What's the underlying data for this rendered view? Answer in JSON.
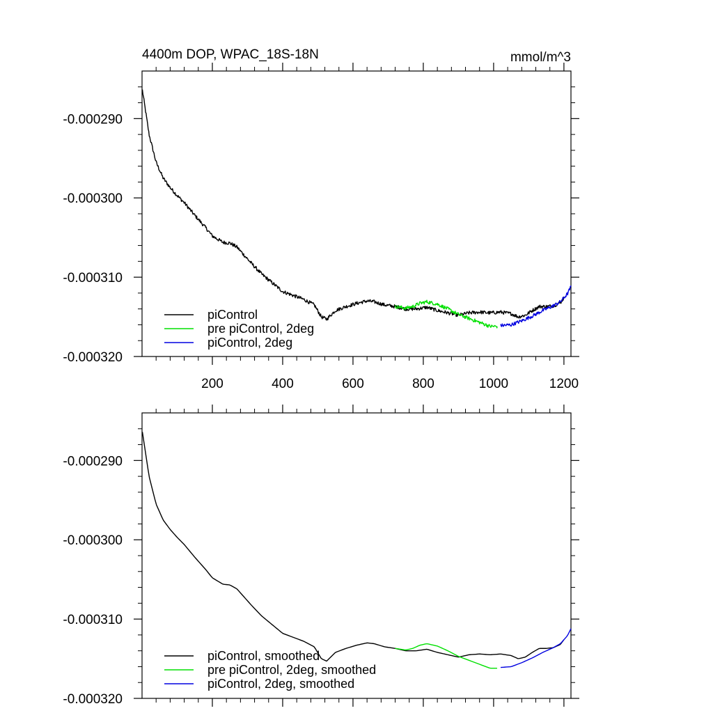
{
  "chart_data": [
    {
      "type": "line",
      "title": "4400m DOP, WPAC_18S-18N",
      "units": "mmol/m^3",
      "xlim": [
        0,
        1220
      ],
      "ylim": [
        -0.00032,
        -0.000284
      ],
      "x_ticks": [
        200,
        400,
        600,
        800,
        1000,
        1200
      ],
      "x_tick_labels": [
        "200",
        "400",
        "600",
        "800",
        "1000",
        "1200"
      ],
      "y_ticks": [
        -0.00029,
        -0.0003,
        -0.00031,
        -0.00032
      ],
      "y_tick_labels": [
        "-0.000290",
        "-0.000300",
        "-0.000310",
        "-0.000320"
      ],
      "series": [
        {
          "name": "piControl",
          "color": "#000000",
          "noisy": true,
          "x": [
            1,
            20,
            40,
            60,
            80,
            100,
            120,
            150,
            180,
            200,
            230,
            250,
            270,
            290,
            310,
            340,
            370,
            400,
            430,
            460,
            490,
            510,
            525,
            550,
            580,
            610,
            640,
            660,
            690,
            720,
            750,
            780,
            810,
            840,
            870,
            900,
            930,
            960,
            990,
            1020,
            1050,
            1070,
            1090,
            1110,
            1130,
            1150,
            1170,
            1190,
            1200
          ],
          "y": [
            -0.0002864,
            -0.000292,
            -0.0002955,
            -0.0002975,
            -0.0002987,
            -0.0002997,
            -0.0003006,
            -0.0003022,
            -0.0003037,
            -0.0003048,
            -0.0003056,
            -0.0003057,
            -0.0003062,
            -0.0003072,
            -0.0003082,
            -0.0003096,
            -0.0003107,
            -0.0003118,
            -0.0003123,
            -0.0003128,
            -0.0003135,
            -0.000315,
            -0.0003153,
            -0.0003142,
            -0.0003137,
            -0.0003133,
            -0.000313,
            -0.0003131,
            -0.0003135,
            -0.0003137,
            -0.000314,
            -0.000314,
            -0.0003138,
            -0.0003142,
            -0.0003145,
            -0.0003148,
            -0.0003145,
            -0.0003144,
            -0.0003145,
            -0.0003144,
            -0.0003146,
            -0.000315,
            -0.0003148,
            -0.0003142,
            -0.0003137,
            -0.0003137,
            -0.0003136,
            -0.0003132,
            -0.0003126
          ]
        },
        {
          "name": "pre piControl, 2deg",
          "color": "#00e000",
          "noisy": true,
          "x": [
            720,
            750,
            770,
            790,
            810,
            840,
            870,
            900,
            930,
            960,
            990,
            1010
          ],
          "y": [
            -0.0003137,
            -0.0003139,
            -0.0003137,
            -0.0003133,
            -0.0003131,
            -0.0003134,
            -0.000314,
            -0.0003147,
            -0.0003152,
            -0.0003157,
            -0.0003162,
            -0.0003162
          ]
        },
        {
          "name": "piControl, 2deg",
          "color": "#0000e0",
          "noisy": true,
          "x": [
            1020,
            1050,
            1080,
            1110,
            1140,
            1170,
            1190,
            1210,
            1220
          ],
          "y": [
            -0.0003161,
            -0.000316,
            -0.0003155,
            -0.0003149,
            -0.0003142,
            -0.0003136,
            -0.0003131,
            -0.0003121,
            -0.0003112
          ]
        }
      ]
    },
    {
      "type": "line",
      "title": "",
      "units": "",
      "xlim": [
        0,
        1220
      ],
      "ylim": [
        -0.00032,
        -0.000284
      ],
      "x_ticks": [
        200,
        400,
        600,
        800,
        1000,
        1200
      ],
      "x_tick_labels": [],
      "y_ticks": [
        -0.00029,
        -0.0003,
        -0.00031,
        -0.00032
      ],
      "y_tick_labels": [
        "-0.000290",
        "-0.000300",
        "-0.000310",
        "-0.000320"
      ],
      "series": [
        {
          "name": "piControl, smoothed",
          "color": "#000000",
          "noisy": false,
          "x": [
            1,
            20,
            40,
            60,
            80,
            100,
            120,
            150,
            180,
            200,
            230,
            250,
            270,
            290,
            310,
            340,
            370,
            400,
            430,
            460,
            490,
            510,
            525,
            550,
            580,
            610,
            640,
            660,
            690,
            720,
            750,
            780,
            810,
            840,
            870,
            900,
            930,
            960,
            990,
            1020,
            1050,
            1070,
            1090,
            1110,
            1130,
            1150,
            1170,
            1190,
            1200
          ],
          "y": [
            -0.0002864,
            -0.000292,
            -0.0002955,
            -0.0002975,
            -0.0002987,
            -0.0002997,
            -0.0003006,
            -0.0003022,
            -0.0003037,
            -0.0003048,
            -0.0003056,
            -0.0003057,
            -0.0003062,
            -0.0003072,
            -0.0003082,
            -0.0003096,
            -0.0003107,
            -0.0003118,
            -0.0003123,
            -0.0003128,
            -0.0003135,
            -0.000315,
            -0.0003153,
            -0.0003142,
            -0.0003137,
            -0.0003133,
            -0.000313,
            -0.0003131,
            -0.0003135,
            -0.0003137,
            -0.000314,
            -0.000314,
            -0.0003138,
            -0.0003142,
            -0.0003145,
            -0.0003148,
            -0.0003145,
            -0.0003144,
            -0.0003145,
            -0.0003144,
            -0.0003146,
            -0.000315,
            -0.0003148,
            -0.0003142,
            -0.0003137,
            -0.0003137,
            -0.0003136,
            -0.0003132,
            -0.0003126
          ]
        },
        {
          "name": "pre piControl, 2deg, smoothed",
          "color": "#00e000",
          "noisy": false,
          "x": [
            720,
            750,
            770,
            790,
            810,
            840,
            870,
            900,
            930,
            960,
            990,
            1010
          ],
          "y": [
            -0.0003137,
            -0.0003139,
            -0.0003137,
            -0.0003133,
            -0.0003131,
            -0.0003134,
            -0.000314,
            -0.0003147,
            -0.0003152,
            -0.0003157,
            -0.0003162,
            -0.0003162
          ]
        },
        {
          "name": "piControl, 2deg, smoothed",
          "color": "#0000e0",
          "noisy": false,
          "x": [
            1020,
            1050,
            1080,
            1110,
            1140,
            1170,
            1190,
            1210,
            1220
          ],
          "y": [
            -0.0003161,
            -0.000316,
            -0.0003155,
            -0.0003149,
            -0.0003142,
            -0.0003136,
            -0.0003131,
            -0.0003121,
            -0.0003112
          ]
        }
      ]
    }
  ]
}
